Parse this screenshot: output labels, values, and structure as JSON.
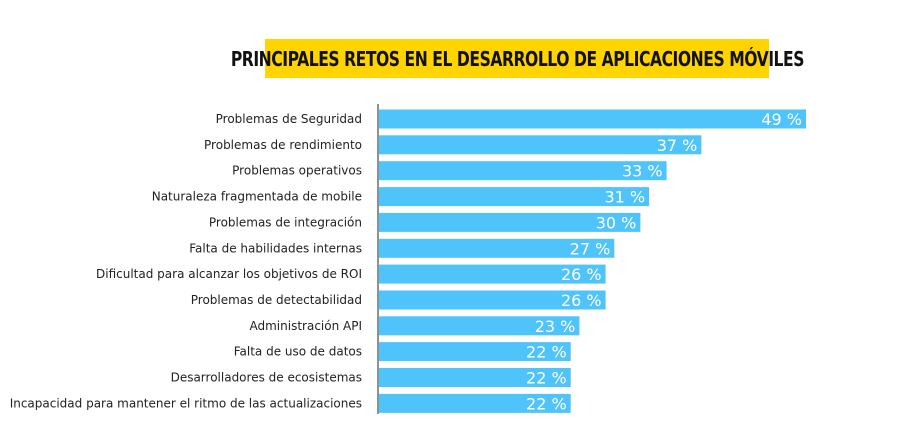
{
  "chart_data": {
    "type": "bar",
    "orientation": "horizontal",
    "title": "PRINCIPALES RETOS EN EL DESARROLLO DE APLICACIONES MÓVILES",
    "categories": [
      "Problemas de Seguridad",
      "Problemas de rendimiento",
      "Problemas operativos",
      "Naturaleza fragmentada de mobile",
      "Problemas de integración",
      "Falta de habilidades internas",
      "Dificultad para alcanzar los objetivos de ROI",
      "Problemas de detectabilidad",
      "Administración API",
      "Falta de uso de datos",
      "Desarrolladores de ecosistemas",
      "Incapacidad para mantener el ritmo de las actualizaciones"
    ],
    "values": [
      49,
      37,
      33,
      31,
      30,
      27,
      26,
      26,
      23,
      22,
      22,
      22
    ],
    "value_labels": [
      "49 %",
      "37 %",
      "33 %",
      "31 %",
      "30 %",
      "27 %",
      "26 %",
      "26 %",
      "23 %",
      "22 %",
      "22 %",
      "22 %"
    ],
    "xlim": [
      0,
      49
    ],
    "grid": false,
    "legend": "none",
    "colors": {
      "bar": "#4fc4fb",
      "title_background": "#ffd400",
      "axis": "#222222",
      "value_text": "#ffffff"
    }
  }
}
